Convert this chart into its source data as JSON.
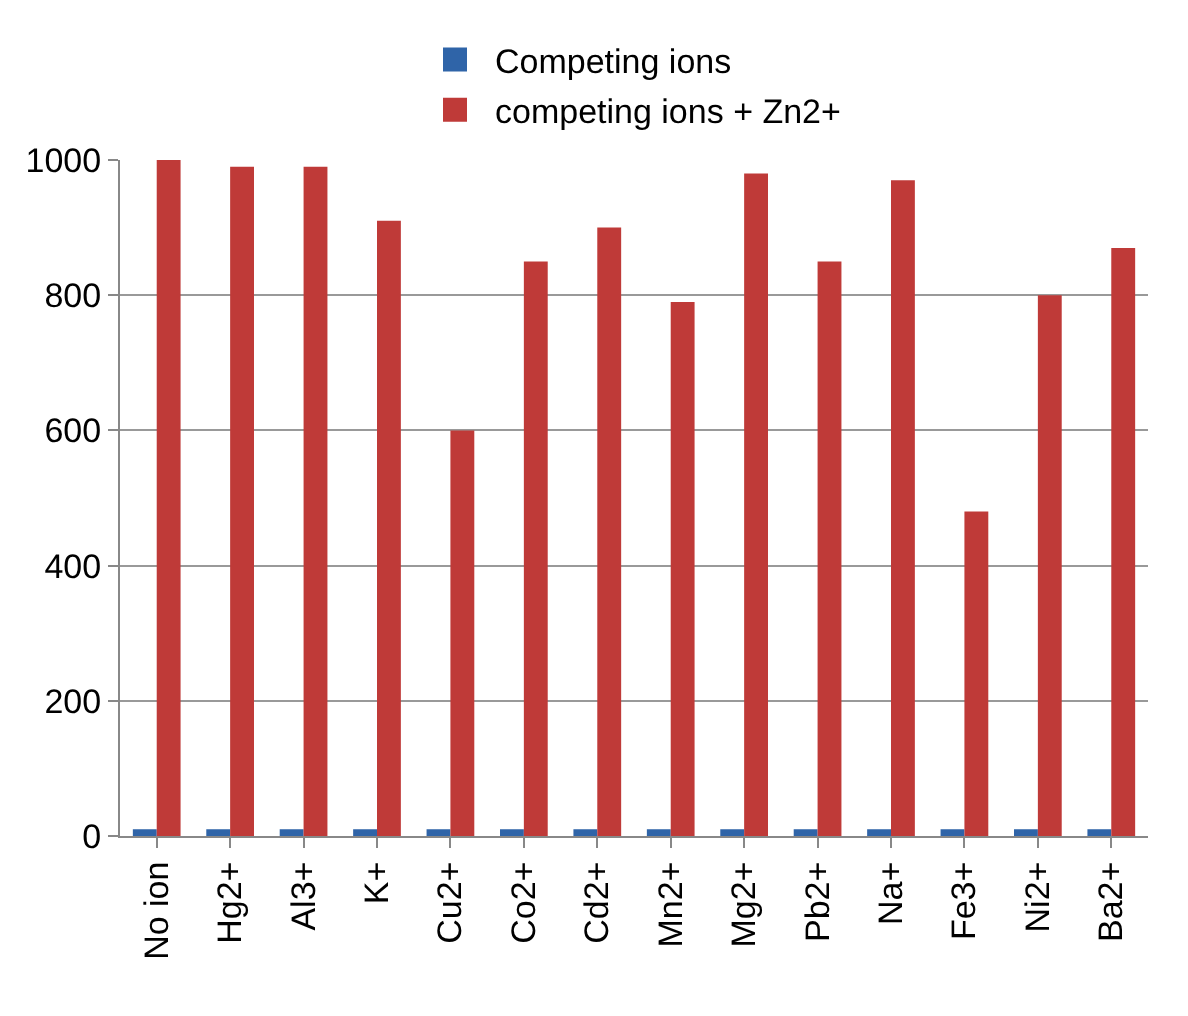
{
  "chart_data": {
    "type": "bar",
    "categories": [
      "No ion",
      "Hg2+",
      "Al3+",
      "K+",
      "Cu2+",
      "Co2+",
      "Cd2+",
      "Mn2+",
      "Mg2+",
      "Pb2+",
      "Na+",
      "Fe3+",
      "Ni2+",
      "Ba2+"
    ],
    "series": [
      {
        "name": "Competing ions",
        "color": "#2f64a8",
        "values": [
          10,
          10,
          10,
          10,
          10,
          10,
          10,
          10,
          10,
          10,
          10,
          10,
          10,
          10
        ]
      },
      {
        "name": "competing ions + Zn2+",
        "color": "#bf3a38",
        "values": [
          1000,
          990,
          990,
          910,
          600,
          850,
          900,
          790,
          980,
          850,
          970,
          480,
          800,
          870
        ]
      }
    ],
    "ylim": [
      0,
      1000
    ],
    "yticks": [
      0,
      200,
      400,
      600,
      800,
      1000
    ],
    "grid": "y",
    "legend": "top"
  }
}
